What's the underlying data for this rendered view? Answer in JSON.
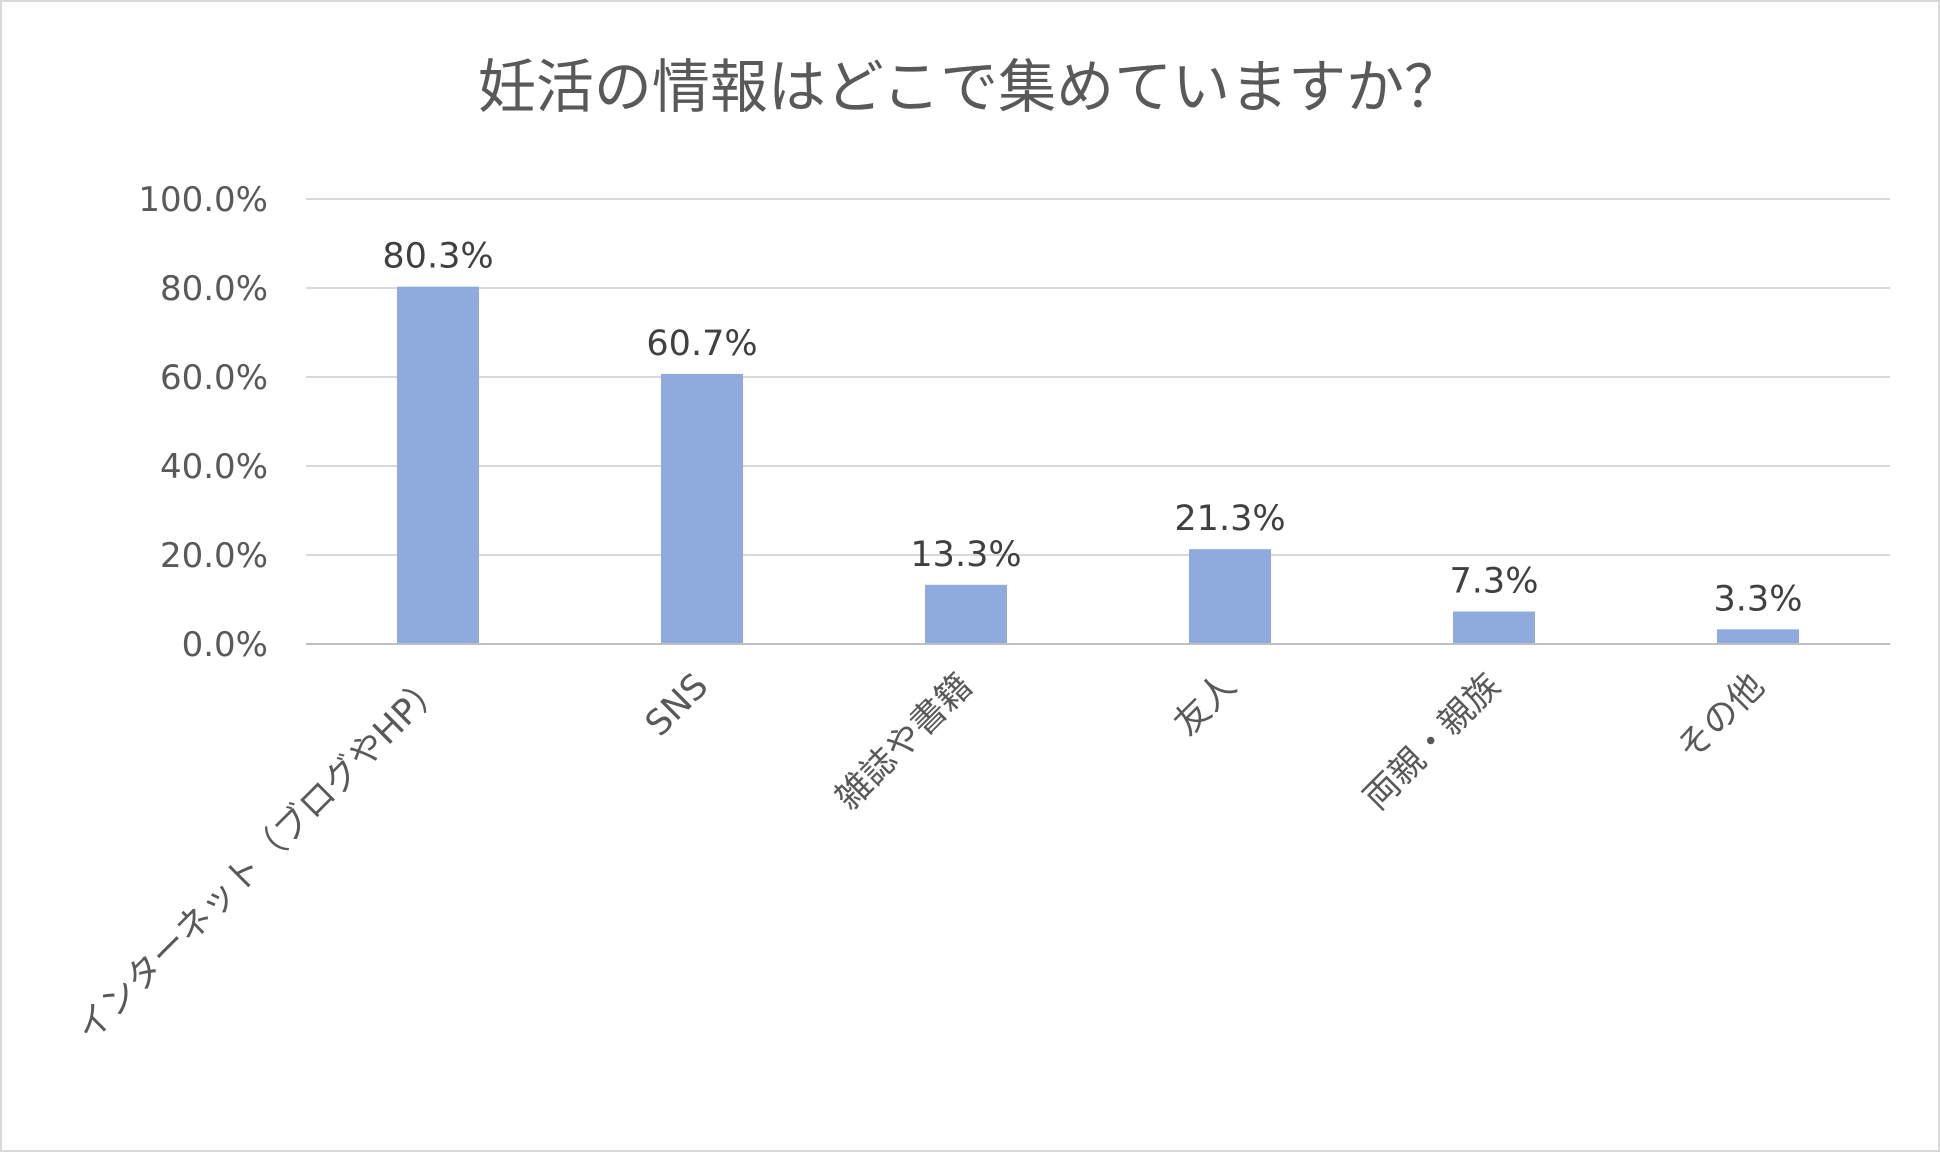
{
  "chart_data": {
    "type": "bar",
    "title": "妊活の情報はどこで集めていますか？",
    "categories": [
      "インターネット（ブログやHP）",
      "SNS",
      "雑誌や書籍",
      "友人",
      "両親・親族",
      "その他"
    ],
    "values": [
      80.3,
      60.7,
      13.3,
      21.3,
      7.3,
      3.3
    ],
    "data_labels": [
      "80.3%",
      "60.7%",
      "13.3%",
      "21.3%",
      "7.3%",
      "3.3%"
    ],
    "ylim": [
      0,
      100
    ],
    "yticks": [
      0,
      20,
      40,
      60,
      80,
      100
    ],
    "ytick_labels": [
      "0.0%",
      "20.0%",
      "40.0%",
      "60.0%",
      "80.0%",
      "100.0%"
    ],
    "grid": true,
    "legend": "none",
    "bar_color": "#8faadc",
    "gridline_color": "#d9d9d9"
  }
}
